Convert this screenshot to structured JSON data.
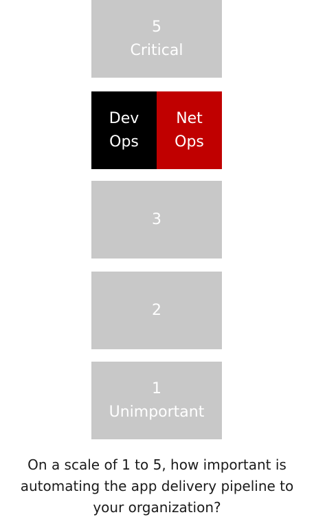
{
  "scale": {
    "level5": {
      "number": "5",
      "label": "Critical"
    },
    "level4": {
      "left": {
        "line1": "Dev",
        "line2": "Ops",
        "color": "#000000"
      },
      "right": {
        "line1": "Net",
        "line2": "Ops",
        "color": "#c00000"
      }
    },
    "level3": {
      "number": "3"
    },
    "level2": {
      "number": "2"
    },
    "level1": {
      "number": "1",
      "label": "Unimportant"
    },
    "box_color": "#c8c8c8"
  },
  "question": {
    "line1": "On a scale of 1 to 5, how important is",
    "line2": "automating the app delivery pipeline to",
    "line3": "your organization?"
  }
}
